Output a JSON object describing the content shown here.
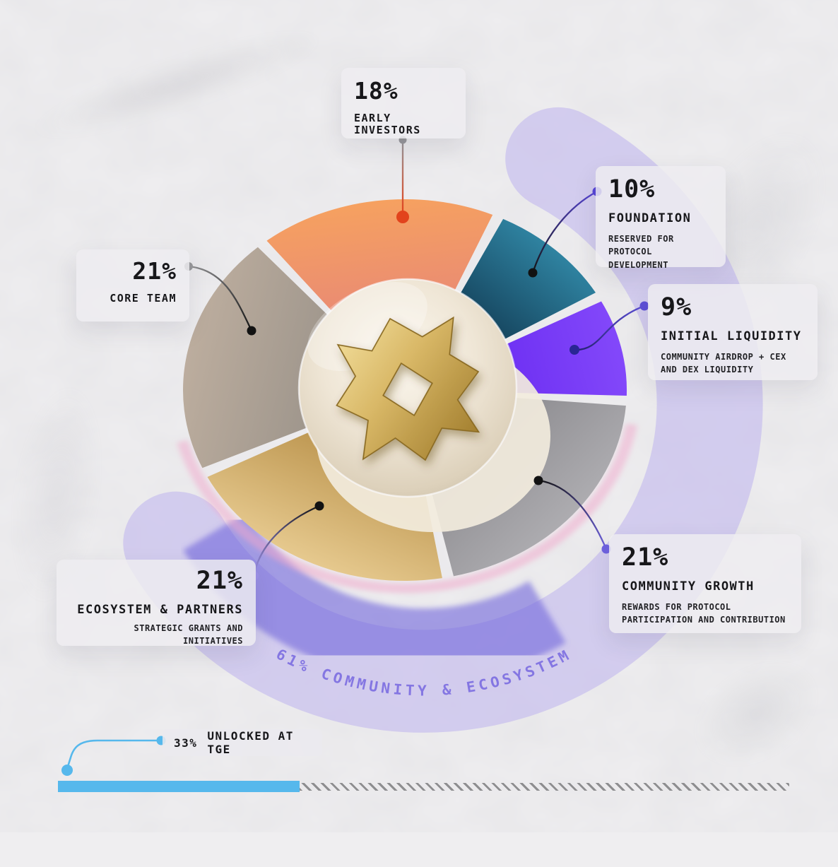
{
  "chart_data": {
    "type": "pie",
    "title": "",
    "start_angle_deg": -40,
    "legend_position": "callout-cards",
    "segments": [
      {
        "name": "EARLY INVESTORS",
        "value": 18,
        "value_label": "18%",
        "description": "",
        "color": "#f6a160",
        "color2": "#e98a74"
      },
      {
        "name": "FOUNDATION",
        "value": 10,
        "value_label": "10%",
        "description": "RESERVED FOR PROTOCOL DEVELOPMENT",
        "color": "#2f83a1",
        "color2": "#123c55"
      },
      {
        "name": "INITIAL LIQUIDITY",
        "value": 9,
        "value_label": "9%",
        "description": "COMMUNITY AIRDROP + CEX AND DEX LIQUIDITY",
        "color": "#8348fa",
        "color2": "#6c2ef2"
      },
      {
        "name": "COMMUNITY GROWTH",
        "value": 21,
        "value_label": "21%",
        "description": "REWARDS FOR PROTOCOL PARTICIPATION AND CONTRIBUTION",
        "color": "#adacb0",
        "color2": "#8d8c90"
      },
      {
        "name": "ECOSYSTEM & PARTNERS",
        "value": 21,
        "value_label": "21%",
        "description": "STRATEGIC GRANTS AND INITIATIVES",
        "color": "#e6c98e",
        "color2": "#c09a55"
      },
      {
        "name": "CORE TEAM",
        "value": 21,
        "value_label": "21%",
        "description": "",
        "color": "#bcad9e",
        "color2": "#a0978d"
      }
    ],
    "band": {
      "label": "61% COMMUNITY & ECOSYSTEM",
      "color": "#bdb3ef",
      "deep_color": "#7265dc",
      "text_color": "#8476e2"
    },
    "unlocked": {
      "percent": 33,
      "value_label": "33%",
      "label": "UNLOCKED AT TGE",
      "bar_color": "#56b8ec",
      "hatch_color": "#8e8e90"
    }
  },
  "decor": {
    "center_icon": "gold-emblem-in-glass-sphere",
    "background": "white-marble",
    "marker_red": "#e2431c",
    "marker_purple": "#5d4fd6",
    "marker_gray": "#97979a",
    "marker_black": "#121212"
  }
}
